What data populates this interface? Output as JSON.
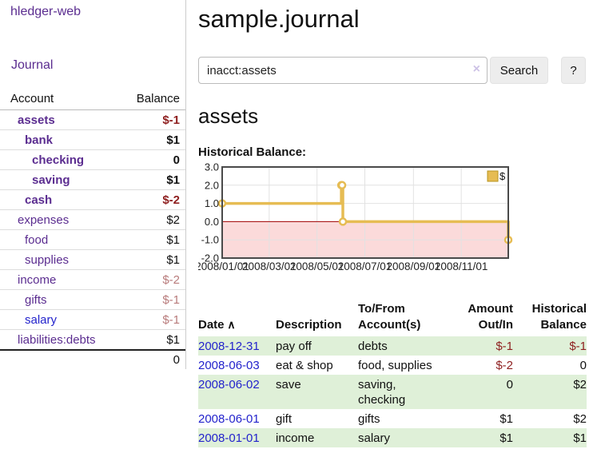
{
  "app": {
    "brand": "hledger-web"
  },
  "nav": {
    "journal": "Journal"
  },
  "sidebar": {
    "header": {
      "account": "Account",
      "balance": "Balance"
    },
    "accounts": [
      {
        "name": "assets",
        "depth": 0,
        "bold": true,
        "blue": false,
        "balance": "$-1",
        "balance_cls": "neg-strong"
      },
      {
        "name": "bank",
        "depth": 1,
        "bold": true,
        "blue": false,
        "balance": "$1",
        "balance_cls": ""
      },
      {
        "name": "checking",
        "depth": 2,
        "bold": true,
        "blue": false,
        "balance": "0",
        "balance_cls": ""
      },
      {
        "name": "saving",
        "depth": 2,
        "bold": true,
        "blue": false,
        "balance": "$1",
        "balance_cls": ""
      },
      {
        "name": "cash",
        "depth": 1,
        "bold": true,
        "blue": false,
        "balance": "$-2",
        "balance_cls": "neg-strong"
      },
      {
        "name": "expenses",
        "depth": 0,
        "bold": false,
        "blue": false,
        "balance": "$2",
        "balance_cls": ""
      },
      {
        "name": "food",
        "depth": 1,
        "bold": false,
        "blue": false,
        "balance": "$1",
        "balance_cls": ""
      },
      {
        "name": "supplies",
        "depth": 1,
        "bold": false,
        "blue": false,
        "balance": "$1",
        "balance_cls": ""
      },
      {
        "name": "income",
        "depth": 0,
        "bold": false,
        "blue": false,
        "balance": "$-2",
        "balance_cls": "neg-muted"
      },
      {
        "name": "gifts",
        "depth": 1,
        "bold": false,
        "blue": false,
        "balance": "$-1",
        "balance_cls": "neg-muted"
      },
      {
        "name": "salary",
        "depth": 1,
        "bold": false,
        "blue": true,
        "balance": "$-1",
        "balance_cls": "neg-muted"
      },
      {
        "name": "liabilities:debts",
        "depth": 0,
        "bold": false,
        "blue": false,
        "balance": "$1",
        "balance_cls": ""
      }
    ],
    "total": "0"
  },
  "header": {
    "title": "sample.journal"
  },
  "search": {
    "value": "inacct:assets",
    "clear_icon": "×",
    "button": "Search",
    "help_button": "?"
  },
  "account_page": {
    "heading": "assets",
    "chart_label": "Historical Balance:"
  },
  "chart_data": {
    "type": "line",
    "step": true,
    "title": "Historical Balance:",
    "series": [
      {
        "name": "$",
        "points": [
          [
            "2008-01-01",
            1
          ],
          [
            "2008-06-01",
            2
          ],
          [
            "2008-06-02",
            2
          ],
          [
            "2008-06-03",
            0
          ],
          [
            "2008-12-31",
            -1
          ]
        ]
      }
    ],
    "ylim": [
      -2,
      3
    ],
    "yticks": [
      "3.0",
      "2.0",
      "1.0",
      "0.0",
      "-1.0",
      "-2.0"
    ],
    "xrange": [
      "2008-01-01",
      "2008-12-31"
    ],
    "xticks": [
      {
        "date": "2008-01-01",
        "label": "2008/01/01"
      },
      {
        "date": "2008-03-01",
        "label": "2008/03/01"
      },
      {
        "date": "2008-05-01",
        "label": "2008/05/01"
      },
      {
        "date": "2008-07-01",
        "label": "2008/07/01"
      },
      {
        "date": "2008-09-01",
        "label": "2008/09/01"
      },
      {
        "date": "2008-11-01",
        "label": "2008/11/01"
      }
    ],
    "legend": {
      "label": "$",
      "position": "top-right"
    },
    "grid": true,
    "colors": {
      "line": "#e6bc53",
      "legend_fill": "#e6bc53",
      "legend_border": "#b8941f",
      "negative_region": "#fbdada",
      "zero_line": "#a40000",
      "border": "#4a4a4a",
      "grid": "#e2e2e2"
    }
  },
  "register": {
    "columns": [
      {
        "lines": [
          "Date"
        ],
        "sort": "asc",
        "align": "left"
      },
      {
        "lines": [
          "Description"
        ],
        "align": "left"
      },
      {
        "lines": [
          "To/From",
          "Account(s)"
        ],
        "align": "left"
      },
      {
        "lines": [
          "Amount",
          "Out/In"
        ],
        "align": "right"
      },
      {
        "lines": [
          "Historical",
          "Balance"
        ],
        "align": "right"
      }
    ],
    "rows": [
      {
        "date": "2008-12-31",
        "description": "pay off",
        "accounts": "debts",
        "amount": "$-1",
        "amount_cls": "neg",
        "balance": "$-1",
        "balance_cls": "neg",
        "shaded": true
      },
      {
        "date": "2008-06-03",
        "description": "eat & shop",
        "accounts": "food, supplies",
        "amount": "$-2",
        "amount_cls": "neg",
        "balance": "0",
        "balance_cls": "",
        "shaded": false
      },
      {
        "date": "2008-06-02",
        "description": "save",
        "accounts": "saving, checking",
        "amount": "0",
        "amount_cls": "",
        "balance": "$2",
        "balance_cls": "",
        "shaded": true
      },
      {
        "date": "2008-06-01",
        "description": "gift",
        "accounts": "gifts",
        "amount": "$1",
        "amount_cls": "",
        "balance": "$2",
        "balance_cls": "",
        "shaded": false
      },
      {
        "date": "2008-01-01",
        "description": "income",
        "accounts": "salary",
        "amount": "$1",
        "amount_cls": "",
        "balance": "$1",
        "balance_cls": "",
        "shaded": true
      }
    ]
  }
}
